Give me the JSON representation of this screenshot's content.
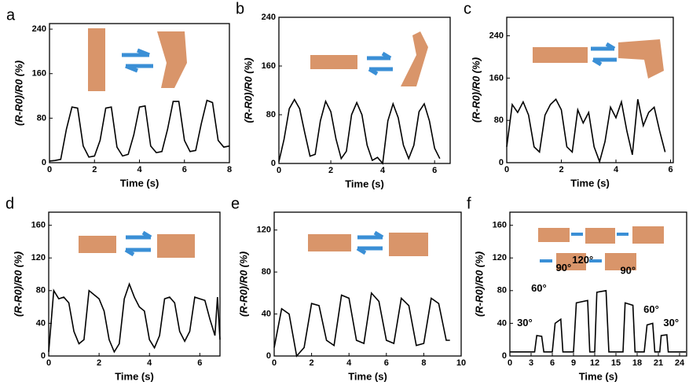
{
  "chart_data": [
    {
      "type": "line",
      "panel": "a",
      "xlabel": "Time (s)",
      "ylabel": "(R-R0)/R0 (%)",
      "color": "#000000",
      "xlim": [
        0,
        8
      ],
      "xticks": [
        0,
        2,
        4,
        6,
        8
      ],
      "ylim": [
        0,
        250
      ],
      "yticks": [
        0,
        80,
        160,
        240
      ],
      "x": [
        0,
        0.25,
        0.5,
        0.75,
        1,
        1.25,
        1.5,
        1.75,
        2,
        2.25,
        2.5,
        2.75,
        3,
        3.25,
        3.5,
        3.75,
        4,
        4.25,
        4.5,
        4.75,
        5,
        5.25,
        5.5,
        5.75,
        6,
        6.25,
        6.5,
        6.75,
        7,
        7.25,
        7.5,
        7.75,
        8
      ],
      "values": [
        3,
        4,
        6,
        60,
        100,
        98,
        30,
        10,
        12,
        40,
        98,
        100,
        28,
        12,
        15,
        50,
        100,
        102,
        30,
        18,
        20,
        60,
        110,
        110,
        40,
        20,
        22,
        70,
        112,
        108,
        40,
        28,
        30
      ]
    },
    {
      "type": "line",
      "panel": "b",
      "xlabel": "Time (s)",
      "ylabel": "(R-R0)/R0 (%)",
      "color": "#000000",
      "xlim": [
        0,
        6.6
      ],
      "xticks": [
        0,
        2,
        4,
        6
      ],
      "ylim": [
        0,
        240
      ],
      "yticks": [
        0,
        80,
        160,
        240
      ],
      "x": [
        0,
        0.2,
        0.4,
        0.6,
        0.8,
        1,
        1.2,
        1.4,
        1.6,
        1.8,
        2,
        2.2,
        2.4,
        2.6,
        2.8,
        3,
        3.2,
        3.4,
        3.6,
        3.8,
        4,
        4.2,
        4.4,
        4.6,
        4.8,
        5,
        5.2,
        5.4,
        5.6,
        5.8,
        6,
        6.2
      ],
      "values": [
        3,
        40,
        90,
        105,
        90,
        50,
        12,
        15,
        70,
        102,
        85,
        40,
        8,
        20,
        80,
        100,
        80,
        30,
        5,
        10,
        0,
        70,
        98,
        75,
        30,
        8,
        30,
        85,
        98,
        70,
        25,
        8
      ]
    },
    {
      "type": "line",
      "panel": "c",
      "xlabel": "Time (s)",
      "ylabel": "(R-R0)/R0 (%)",
      "color": "#000000",
      "xlim": [
        0,
        6.1
      ],
      "xticks": [
        0,
        2,
        4,
        6
      ],
      "ylim": [
        0,
        275
      ],
      "yticks": [
        0,
        80,
        160,
        240
      ],
      "x": [
        0,
        0.2,
        0.4,
        0.6,
        0.8,
        1,
        1.2,
        1.4,
        1.6,
        1.8,
        2,
        2.2,
        2.4,
        2.6,
        2.8,
        3,
        3.2,
        3.4,
        3.6,
        3.8,
        4,
        4.2,
        4.4,
        4.6,
        4.8,
        5,
        5.2,
        5.4,
        5.6,
        5.8
      ],
      "values": [
        30,
        110,
        95,
        115,
        90,
        30,
        20,
        90,
        110,
        120,
        100,
        30,
        20,
        100,
        75,
        95,
        30,
        2,
        40,
        105,
        85,
        115,
        60,
        15,
        120,
        70,
        95,
        105,
        60,
        20
      ]
    },
    {
      "type": "line",
      "panel": "d",
      "xlabel": "Time (s)",
      "ylabel": "(R-R0)/R0 (%)",
      "color": "#000000",
      "xlim": [
        0,
        6.8
      ],
      "xticks": [
        0,
        2,
        4,
        6
      ],
      "ylim": [
        0,
        176
      ],
      "yticks": [
        0,
        40,
        80,
        120,
        160
      ],
      "x": [
        0,
        0.2,
        0.4,
        0.6,
        0.8,
        1,
        1.2,
        1.4,
        1.6,
        1.8,
        2,
        2.2,
        2.4,
        2.6,
        2.8,
        3,
        3.2,
        3.4,
        3.6,
        3.8,
        4,
        4.2,
        4.4,
        4.6,
        4.8,
        5,
        5.2,
        5.4,
        5.6,
        5.8,
        6,
        6.2,
        6.4,
        6.6,
        6.7,
        6.8
      ],
      "values": [
        5,
        80,
        70,
        72,
        65,
        30,
        15,
        20,
        80,
        75,
        70,
        55,
        20,
        5,
        15,
        70,
        88,
        72,
        60,
        55,
        20,
        10,
        25,
        70,
        72,
        65,
        30,
        18,
        30,
        72,
        70,
        68,
        45,
        25,
        72,
        20
      ]
    },
    {
      "type": "line",
      "panel": "e",
      "xlabel": "Time (s)",
      "ylabel": "(R-R0)/R0 (%)",
      "color": "#000000",
      "xlim": [
        0,
        10
      ],
      "xticks": [
        0,
        2,
        4,
        6,
        8,
        10
      ],
      "ylim": [
        0,
        137
      ],
      "yticks": [
        0,
        40,
        80,
        120
      ],
      "x": [
        0,
        0.4,
        0.8,
        1.2,
        1.6,
        2,
        2.4,
        2.8,
        3.2,
        3.6,
        4,
        4.4,
        4.8,
        5.2,
        5.6,
        6,
        6.4,
        6.8,
        7.2,
        7.6,
        8,
        8.4,
        8.8,
        9.2,
        9.4
      ],
      "values": [
        8,
        45,
        40,
        0,
        8,
        50,
        48,
        15,
        10,
        58,
        55,
        15,
        12,
        60,
        52,
        15,
        12,
        55,
        48,
        10,
        12,
        55,
        50,
        15,
        15
      ]
    },
    {
      "type": "line",
      "panel": "f",
      "xlabel": "Time (s)",
      "ylabel": "(R-R0)/R0 (%)",
      "color": "#000000",
      "xlim": [
        0,
        25
      ],
      "xticks": [
        0,
        3,
        6,
        9,
        12,
        15,
        18,
        21,
        24
      ],
      "ylim": [
        0,
        176
      ],
      "yticks": [
        0,
        40,
        80,
        120,
        160
      ],
      "x": [
        0,
        3.5,
        3.8,
        4.5,
        4.8,
        6,
        6.4,
        7.2,
        7.5,
        9,
        9.4,
        11,
        11.3,
        12,
        12.3,
        13.6,
        14,
        16,
        16.3,
        17.4,
        17.7,
        19,
        19.4,
        20.2,
        20.5,
        21.2,
        21.4,
        22.2,
        22.4,
        24.9
      ],
      "values": [
        5,
        5,
        25,
        24,
        5,
        5,
        40,
        45,
        5,
        5,
        65,
        68,
        5,
        5,
        78,
        80,
        5,
        5,
        65,
        62,
        5,
        5,
        38,
        40,
        5,
        5,
        25,
        26,
        5,
        5
      ],
      "annotations": [
        {
          "text": "30°",
          "x": 2.1,
          "y": 40
        },
        {
          "text": "60°",
          "x": 4.1,
          "y": 82
        },
        {
          "text": "90°",
          "x": 7.6,
          "y": 107
        },
        {
          "text": "120°",
          "x": 10.3,
          "y": 117
        },
        {
          "text": "90°",
          "x": 16.7,
          "y": 104
        },
        {
          "text": "60°",
          "x": 20,
          "y": 56
        },
        {
          "text": "30°",
          "x": 22.8,
          "y": 40
        }
      ]
    }
  ]
}
